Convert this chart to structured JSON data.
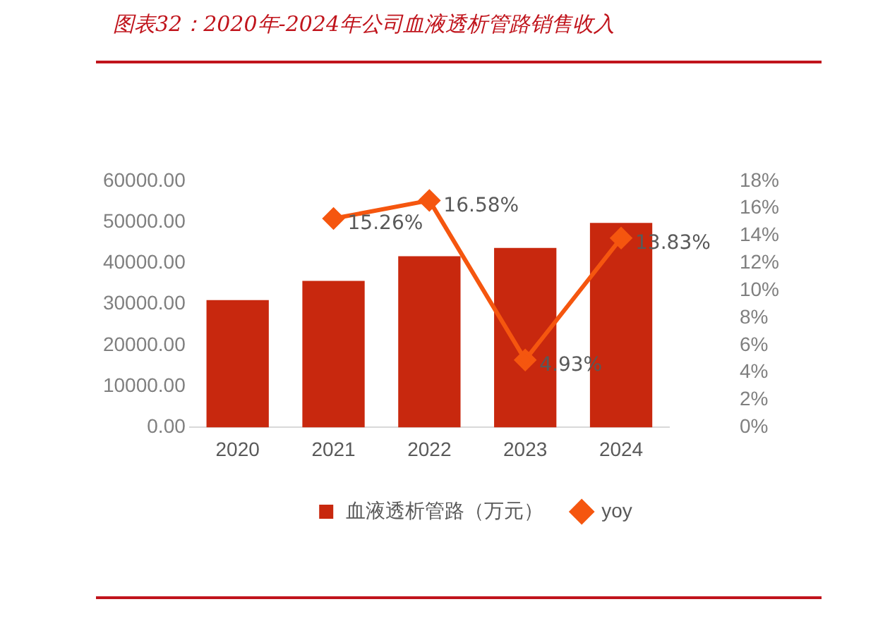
{
  "chart_data": {
    "type": "bar",
    "title": "图表32：2020年-2024年公司血液透析管路销售收入",
    "categories": [
      "2020",
      "2021",
      "2022",
      "2023",
      "2024"
    ],
    "series": [
      {
        "name": "血液透析管路（万元）",
        "color": "#c8280e",
        "values": [
          31000,
          35700,
          41700,
          43700,
          49800
        ]
      },
      {
        "name": "yoy",
        "type": "line",
        "axis": "y2",
        "color": "#f5560f",
        "marker": "diamond",
        "values": [
          null,
          15.26,
          16.58,
          4.93,
          13.83
        ],
        "value_labels": [
          null,
          "15.26%",
          "16.58%",
          "4.93%",
          "13.83%"
        ]
      }
    ],
    "ylim": [
      0,
      60000
    ],
    "yticks": [
      {
        "value": 0,
        "label": "0.00"
      },
      {
        "value": 10000,
        "label": "10000.00"
      },
      {
        "value": 20000,
        "label": "20000.00"
      },
      {
        "value": 30000,
        "label": "30000.00"
      },
      {
        "value": 40000,
        "label": "40000.00"
      },
      {
        "value": 50000,
        "label": "50000.00"
      },
      {
        "value": 60000,
        "label": "60000.00"
      }
    ],
    "y2lim": [
      0,
      18
    ],
    "y2ticks": [
      {
        "value": 0,
        "label": "0%"
      },
      {
        "value": 2,
        "label": "2%"
      },
      {
        "value": 4,
        "label": "4%"
      },
      {
        "value": 6,
        "label": "6%"
      },
      {
        "value": 8,
        "label": "8%"
      },
      {
        "value": 10,
        "label": "10%"
      },
      {
        "value": 12,
        "label": "12%"
      },
      {
        "value": 14,
        "label": "14%"
      },
      {
        "value": 16,
        "label": "16%"
      },
      {
        "value": 18,
        "label": "18%"
      }
    ],
    "grid": false,
    "legend": "bottom"
  }
}
